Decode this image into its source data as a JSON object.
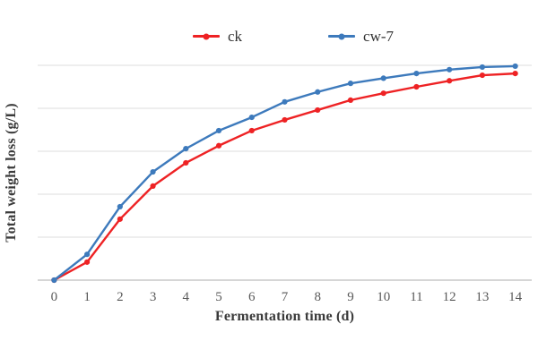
{
  "figure": {
    "background": "#ffffff"
  },
  "legend": {
    "items": [
      {
        "label": "ck",
        "color": "#ee2224"
      },
      {
        "label": "cw-7",
        "color": "#3d7abc"
      }
    ]
  },
  "axes": {
    "x_title": "Fermentation time (d)",
    "y_title": "Total weight loss (g/L)",
    "x_ticks": [
      "0",
      "1",
      "2",
      "3",
      "4",
      "5",
      "6",
      "7",
      "8",
      "9",
      "10",
      "11",
      "12",
      "13",
      "14"
    ]
  },
  "colors": {
    "grid": "#e4e4e4",
    "axis_line": "#c9c9c9",
    "tick_text": "#595959",
    "title_text": "#3a3a3a"
  },
  "chart_data": {
    "type": "line",
    "x": [
      0,
      1,
      2,
      3,
      4,
      5,
      6,
      7,
      8,
      9,
      10,
      11,
      12,
      13,
      14
    ],
    "series": [
      {
        "name": "ck",
        "color": "#ee2224",
        "marker": "dot",
        "values": [
          0,
          0.42,
          1.42,
          2.19,
          2.73,
          3.13,
          3.48,
          3.73,
          3.96,
          4.19,
          4.35,
          4.5,
          4.64,
          4.77,
          4.81
        ]
      },
      {
        "name": "cw-7",
        "color": "#3d7abc",
        "marker": "dot",
        "values": [
          0,
          0.6,
          1.71,
          2.52,
          3.06,
          3.48,
          3.79,
          4.15,
          4.38,
          4.58,
          4.7,
          4.81,
          4.9,
          4.96,
          4.98
        ]
      }
    ],
    "title": "",
    "xlabel": "Fermentation time (d)",
    "ylabel": "Total weight loss (g/L)",
    "xlim": [
      0,
      14
    ],
    "ylim": [
      0,
      5
    ],
    "grid": "horizontal only",
    "y_tick_labels_visible": false,
    "legend_position": "top-center",
    "note": "y-axis has no numeric tick labels; values estimated in gridline units (5 equal gridline intervals from baseline to top gridline)"
  }
}
